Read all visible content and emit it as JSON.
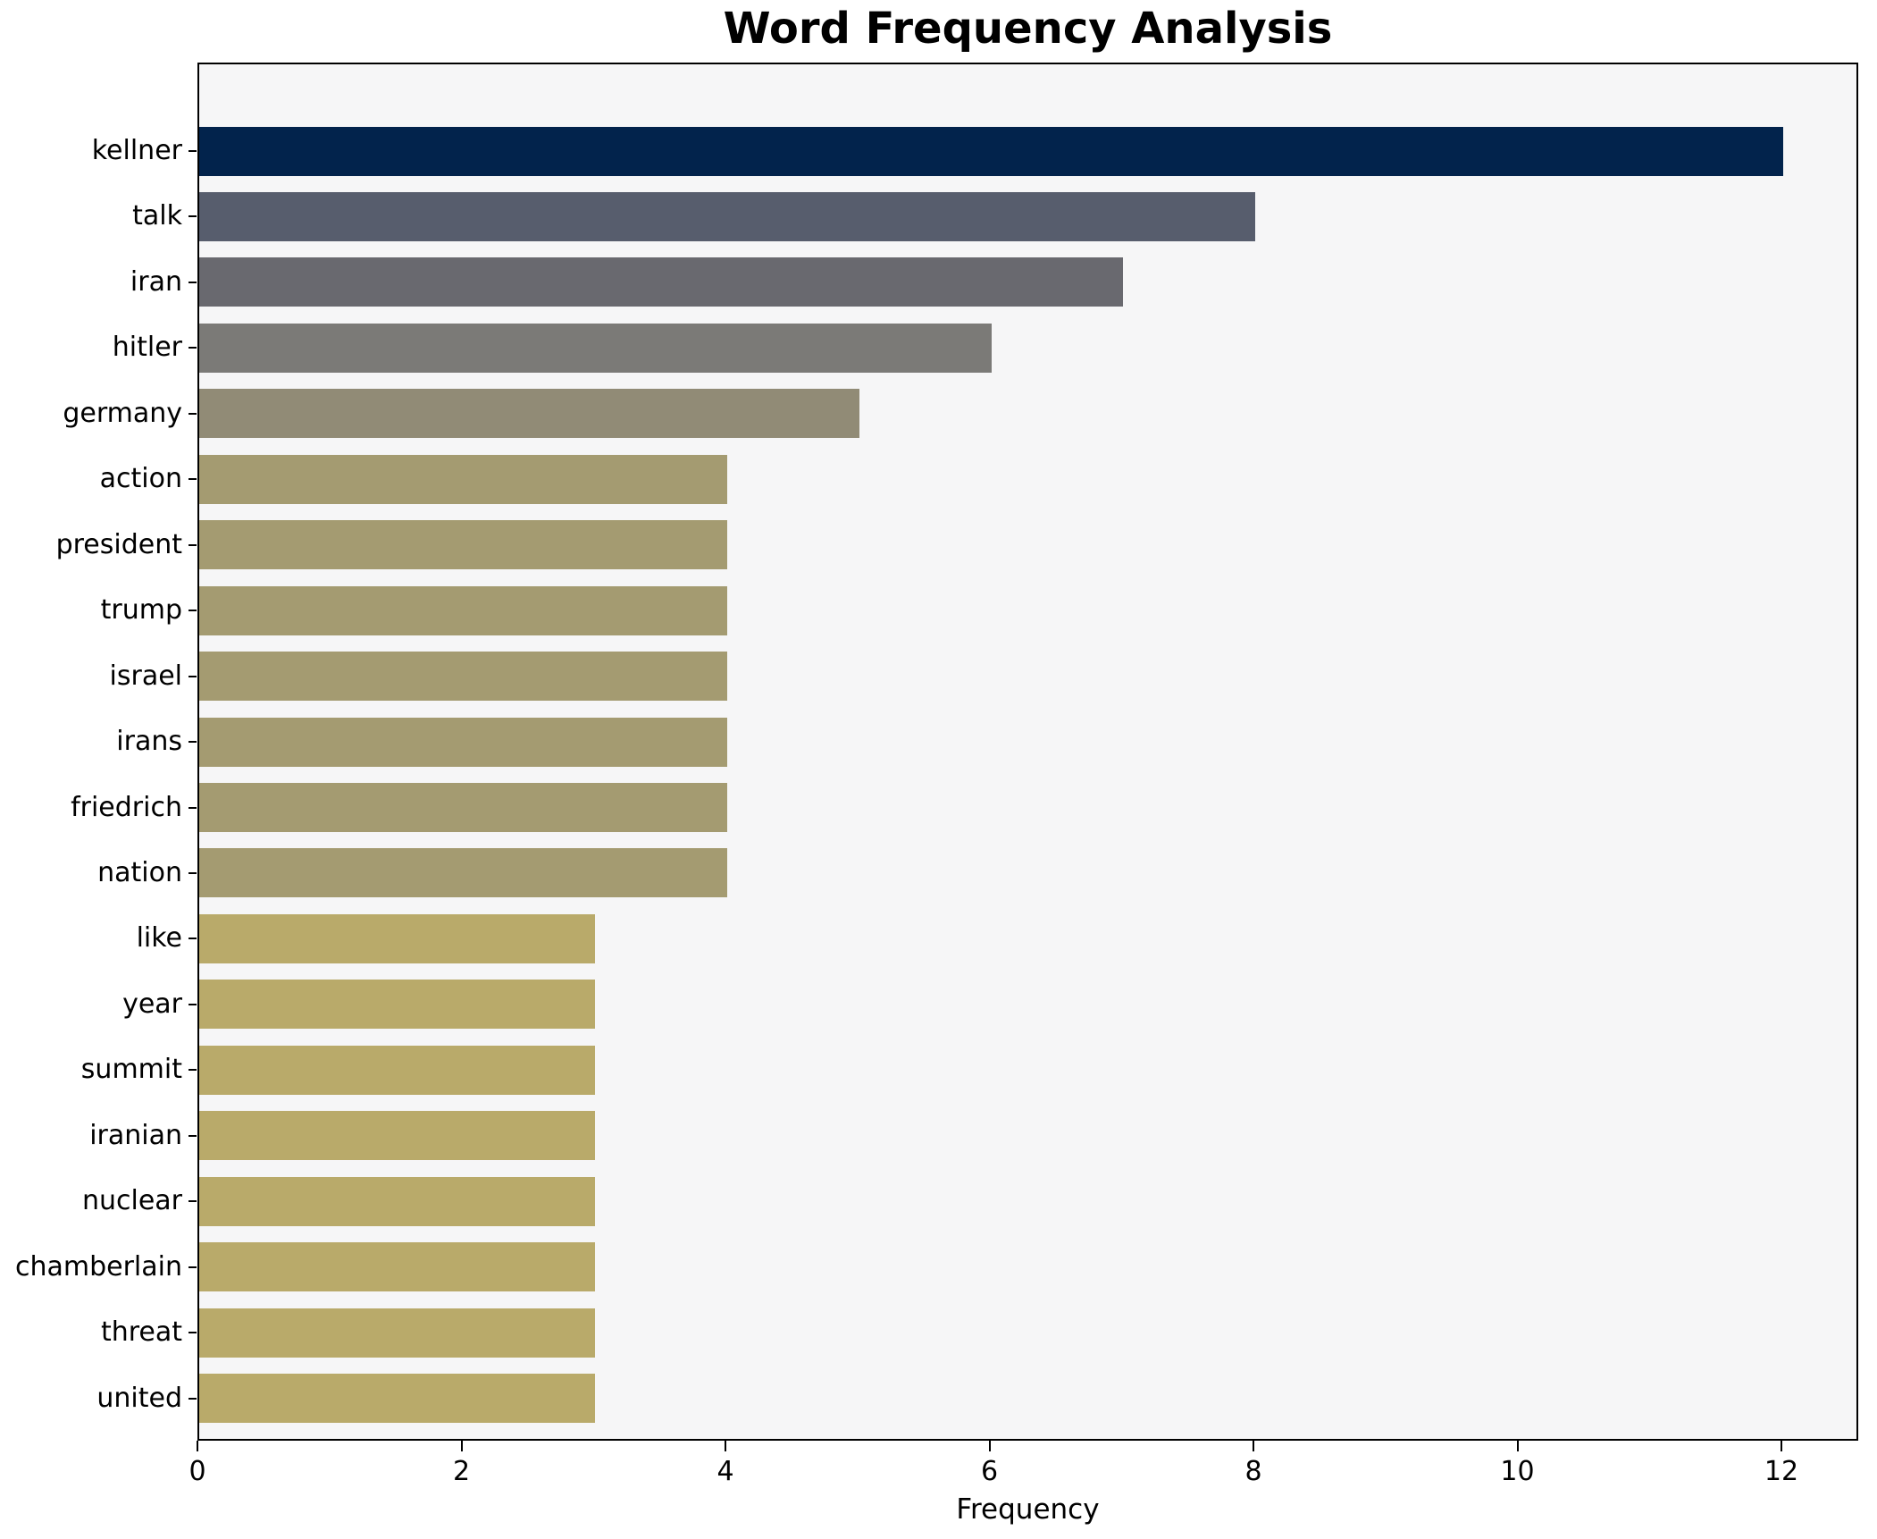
{
  "chart_data": {
    "type": "bar",
    "orientation": "horizontal",
    "title": "Word Frequency Analysis",
    "xlabel": "Frequency",
    "ylabel": "",
    "grid": false,
    "legend": null,
    "xlim": [
      0,
      12.6
    ],
    "x_ticks": [
      0,
      2,
      4,
      6,
      8,
      10,
      12
    ],
    "plot_background": "#f6f6f7",
    "spine_color": "#000000",
    "categories": [
      "kellner",
      "talk",
      "iran",
      "hitler",
      "germany",
      "action",
      "president",
      "trump",
      "israel",
      "irans",
      "friedrich",
      "nation",
      "like",
      "year",
      "summit",
      "iranian",
      "nuclear",
      "chamberlain",
      "threat",
      "united"
    ],
    "values": [
      12,
      8,
      7,
      6,
      5,
      4,
      4,
      4,
      4,
      4,
      4,
      4,
      3,
      3,
      3,
      3,
      3,
      3,
      3,
      3
    ],
    "bar_colors": [
      "#02234c",
      "#575d6d",
      "#69696f",
      "#7b7a77",
      "#918b76",
      "#a49b71",
      "#a49b71",
      "#a49b71",
      "#a49b71",
      "#a49b71",
      "#a49b71",
      "#a49b71",
      "#b9aa6a",
      "#b9aa6a",
      "#b9aa6a",
      "#b9aa6a",
      "#b9aa6a",
      "#b9aa6a",
      "#b9aa6a",
      "#b9aa6a"
    ]
  }
}
